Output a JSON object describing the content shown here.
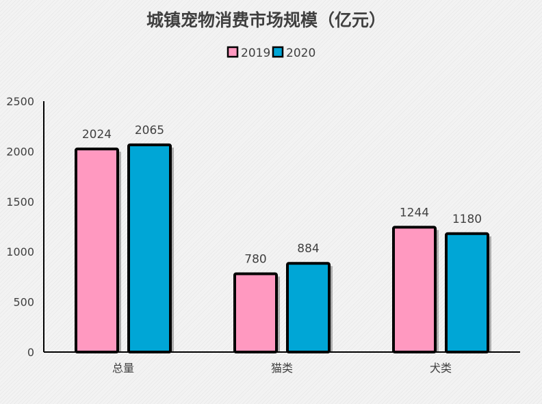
{
  "chart_data": {
    "type": "bar",
    "title": "城镇宠物消费市场规模（亿元）",
    "categories": [
      "总量",
      "猫类",
      "犬类"
    ],
    "series": [
      {
        "name": "2019",
        "values": [
          2024,
          780,
          1244
        ],
        "color": "#ff99c0"
      },
      {
        "name": "2020",
        "values": [
          2065,
          884,
          1180
        ],
        "color": "#00a6d6"
      }
    ],
    "ylim": [
      0,
      2500
    ],
    "yticks": [
      0,
      500,
      1000,
      1500,
      2000,
      2500
    ],
    "legend_position": "top-center",
    "grid": false
  }
}
